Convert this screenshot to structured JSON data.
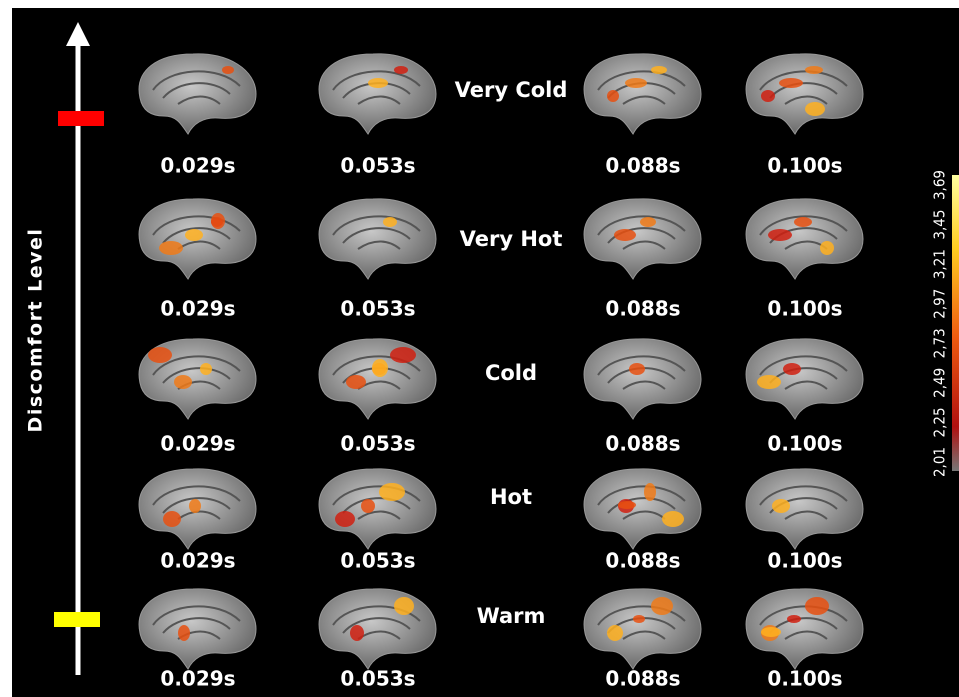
{
  "axis_label": "Discomfort Level",
  "rows": [
    {
      "label": "Very Cold",
      "times": [
        "0.029s",
        "0.053s",
        "0.088s",
        "0.100s"
      ]
    },
    {
      "label": "Very Hot",
      "times": [
        "0.029s",
        "0.053s",
        "0.088s",
        "0.100s"
      ]
    },
    {
      "label": "Cold",
      "times": [
        "0.029s",
        "0.053s",
        "0.088s",
        "0.100s"
      ]
    },
    {
      "label": "Hot",
      "times": [
        "0.029s",
        "0.053s",
        "0.088s",
        "0.100s"
      ]
    },
    {
      "label": "Warm",
      "times": [
        "0.029s",
        "0.053s",
        "0.088s",
        "0.100s"
      ]
    }
  ],
  "colorbar": {
    "ticks": [
      "2,01",
      "2,25",
      "2,49",
      "2,73",
      "2,97",
      "3,21",
      "3,45",
      "3,69"
    ]
  }
}
